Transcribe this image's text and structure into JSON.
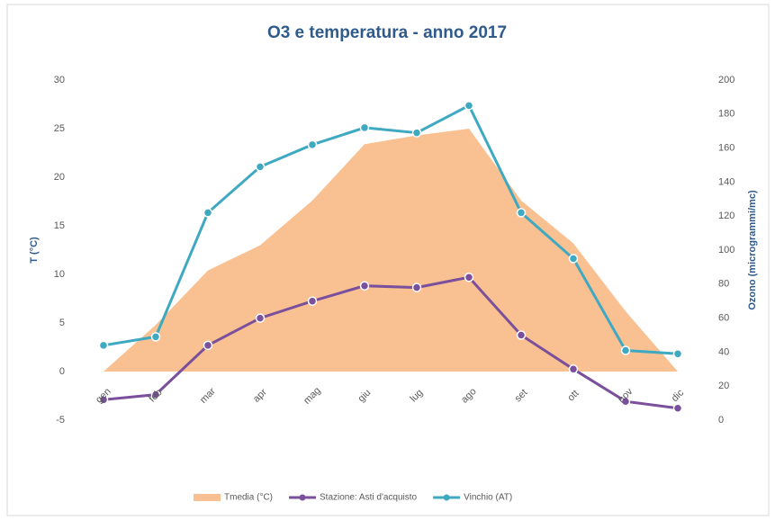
{
  "chart_data": {
    "type": "area_line",
    "title": "O3 e temperatura - anno 2017",
    "ylabel": "T (°C)",
    "y2label": "Ozono (microgrammi/mc)",
    "categories": [
      "gen",
      "feb",
      "mar",
      "apr",
      "mag",
      "giu",
      "lug",
      "ago",
      "set",
      "ott",
      "nov",
      "dic"
    ],
    "ylim": [
      -5,
      30
    ],
    "yticks": [
      -5,
      0,
      5,
      10,
      15,
      20,
      25,
      30
    ],
    "y2lim": [
      0,
      200
    ],
    "y2ticks": [
      0,
      20,
      40,
      60,
      80,
      100,
      120,
      140,
      160,
      180,
      200
    ],
    "legend": "bottom",
    "series": [
      {
        "name": "Tmedia (°C)",
        "kind": "area",
        "color": "#f9c191",
        "values": [
          0,
          4.8,
          10.4,
          13,
          17.6,
          23.4,
          24.3,
          25,
          17.6,
          13.2,
          6.2,
          0
        ]
      },
      {
        "name": "Stazione: Asti d'acquisto",
        "kind": "line",
        "axis": "y2",
        "color": "#7a4f9c",
        "values": [
          12,
          15,
          44,
          60,
          70,
          79,
          78,
          84,
          50,
          30,
          11,
          7
        ]
      },
      {
        "name": "Vinchio (AT)",
        "kind": "line",
        "axis": "y2",
        "color": "#40a9c2",
        "values": [
          44,
          49,
          122,
          149,
          162,
          172,
          169,
          185,
          122,
          95,
          41,
          39
        ]
      }
    ]
  }
}
